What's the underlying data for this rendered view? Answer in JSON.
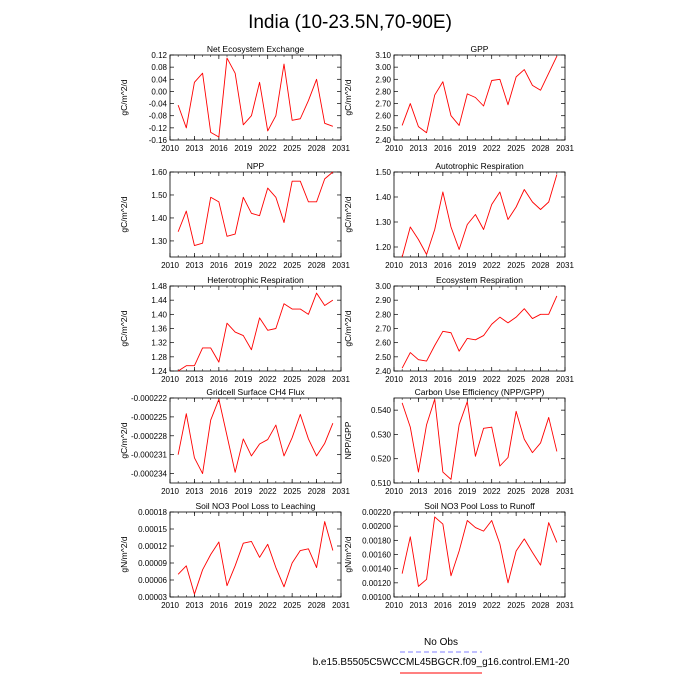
{
  "figure": {
    "title": "India (10-23.5N,70-90E)",
    "legend": {
      "entries": [
        {
          "label": "No Obs",
          "color": "#8080ff",
          "style": "dashed"
        },
        {
          "label": "b.e15.B5505C5WCCML45BGCR.f09_g16.control.EM1-20",
          "color": "#ff0000",
          "style": "solid"
        }
      ]
    }
  },
  "chart_data": [
    {
      "type": "line",
      "title": "Net Ecosystem Exchange",
      "ylabel": "gC/m^2/d",
      "xlabel": "",
      "xlim": [
        2010,
        2031
      ],
      "ylim": [
        -0.16,
        0.12
      ],
      "xticks": [
        2010,
        2013,
        2016,
        2019,
        2022,
        2025,
        2028,
        2031
      ],
      "xtick_labels": [
        "2010",
        "2013",
        "2016",
        "2019",
        "2022",
        "2025",
        "2028",
        "2031"
      ],
      "yticks": [
        -0.16,
        -0.12,
        -0.08,
        -0.04,
        0.0,
        0.04,
        0.08,
        0.12
      ],
      "ytick_labels": [
        "-0.16",
        "-0.12",
        "-0.08",
        "-0.04",
        "0.00",
        "0.04",
        "0.08",
        "0.12"
      ],
      "x": [
        2011,
        2012,
        2013,
        2014,
        2015,
        2016,
        2017,
        2018,
        2019,
        2020,
        2021,
        2022,
        2023,
        2024,
        2025,
        2026,
        2027,
        2028,
        2029,
        2030
      ],
      "series": [
        {
          "color": "#ff0000",
          "values": [
            -0.045,
            -0.12,
            0.03,
            0.06,
            -0.135,
            -0.15,
            0.11,
            0.06,
            -0.11,
            -0.08,
            0.03,
            -0.13,
            -0.08,
            0.09,
            -0.095,
            -0.09,
            -0.03,
            0.04,
            -0.105,
            -0.115
          ]
        }
      ]
    },
    {
      "type": "line",
      "title": "GPP",
      "ylabel": "gC/m^2/d",
      "xlabel": "",
      "xlim": [
        2010,
        2031
      ],
      "ylim": [
        2.4,
        3.1
      ],
      "xticks": [
        2010,
        2013,
        2016,
        2019,
        2022,
        2025,
        2028,
        2031
      ],
      "xtick_labels": [
        "2010",
        "2013",
        "2016",
        "2019",
        "2022",
        "2025",
        "2028",
        "2031"
      ],
      "yticks": [
        2.4,
        2.5,
        2.6,
        2.7,
        2.8,
        2.9,
        3.0,
        3.1
      ],
      "ytick_labels": [
        "2.40",
        "2.50",
        "2.60",
        "2.70",
        "2.80",
        "2.90",
        "3.00",
        "3.10"
      ],
      "x": [
        2011,
        2012,
        2013,
        2014,
        2015,
        2016,
        2017,
        2018,
        2019,
        2020,
        2021,
        2022,
        2023,
        2024,
        2025,
        2026,
        2027,
        2028,
        2029,
        2030
      ],
      "series": [
        {
          "color": "#ff0000",
          "values": [
            2.52,
            2.7,
            2.51,
            2.46,
            2.77,
            2.88,
            2.6,
            2.52,
            2.78,
            2.75,
            2.68,
            2.89,
            2.9,
            2.69,
            2.92,
            2.98,
            2.85,
            2.81,
            2.95,
            3.09
          ]
        }
      ]
    },
    {
      "type": "line",
      "title": "NPP",
      "ylabel": "gC/m^2/d",
      "xlabel": "",
      "xlim": [
        2010,
        2031
      ],
      "ylim": [
        1.23,
        1.6
      ],
      "xticks": [
        2010,
        2013,
        2016,
        2019,
        2022,
        2025,
        2028,
        2031
      ],
      "xtick_labels": [
        "2010",
        "2013",
        "2016",
        "2019",
        "2022",
        "2025",
        "2028",
        "2031"
      ],
      "yticks": [
        1.3,
        1.4,
        1.5,
        1.6
      ],
      "ytick_labels": [
        "1.30",
        "1.40",
        "1.50",
        "1.60"
      ],
      "x": [
        2011,
        2012,
        2013,
        2014,
        2015,
        2016,
        2017,
        2018,
        2019,
        2020,
        2021,
        2022,
        2023,
        2024,
        2025,
        2026,
        2027,
        2028,
        2029,
        2030
      ],
      "series": [
        {
          "color": "#ff0000",
          "values": [
            1.34,
            1.43,
            1.28,
            1.29,
            1.49,
            1.47,
            1.32,
            1.33,
            1.49,
            1.42,
            1.41,
            1.53,
            1.49,
            1.38,
            1.56,
            1.56,
            1.47,
            1.47,
            1.57,
            1.6
          ]
        }
      ]
    },
    {
      "type": "line",
      "title": "Autotrophic Respiration",
      "ylabel": "gC/m^2/d",
      "xlabel": "",
      "xlim": [
        2010,
        2031
      ],
      "ylim": [
        1.16,
        1.5
      ],
      "xticks": [
        2010,
        2013,
        2016,
        2019,
        2022,
        2025,
        2028,
        2031
      ],
      "xtick_labels": [
        "2010",
        "2013",
        "2016",
        "2019",
        "2022",
        "2025",
        "2028",
        "2031"
      ],
      "yticks": [
        1.2,
        1.3,
        1.4,
        1.5
      ],
      "ytick_labels": [
        "1.20",
        "1.30",
        "1.40",
        "1.50"
      ],
      "x": [
        2011,
        2012,
        2013,
        2014,
        2015,
        2016,
        2017,
        2018,
        2019,
        2020,
        2021,
        2022,
        2023,
        2024,
        2025,
        2026,
        2027,
        2028,
        2029,
        2030
      ],
      "series": [
        {
          "color": "#ff0000",
          "values": [
            1.16,
            1.28,
            1.23,
            1.17,
            1.27,
            1.42,
            1.28,
            1.19,
            1.29,
            1.33,
            1.27,
            1.37,
            1.42,
            1.31,
            1.36,
            1.43,
            1.38,
            1.35,
            1.38,
            1.49
          ]
        }
      ]
    },
    {
      "type": "line",
      "title": "Heterotrophic Respiration",
      "ylabel": "gC/m^2/d",
      "xlabel": "",
      "xlim": [
        2010,
        2031
      ],
      "ylim": [
        1.24,
        1.48
      ],
      "xticks": [
        2010,
        2013,
        2016,
        2019,
        2022,
        2025,
        2028,
        2031
      ],
      "xtick_labels": [
        "2010",
        "2013",
        "2016",
        "2019",
        "2022",
        "2025",
        "2028",
        "2031"
      ],
      "yticks": [
        1.24,
        1.28,
        1.32,
        1.36,
        1.4,
        1.44,
        1.48
      ],
      "ytick_labels": [
        "1.24",
        "1.28",
        "1.32",
        "1.36",
        "1.40",
        "1.44",
        "1.48"
      ],
      "x": [
        2011,
        2012,
        2013,
        2014,
        2015,
        2016,
        2017,
        2018,
        2019,
        2020,
        2021,
        2022,
        2023,
        2024,
        2025,
        2026,
        2027,
        2028,
        2029,
        2030
      ],
      "series": [
        {
          "color": "#ff0000",
          "values": [
            1.24,
            1.255,
            1.255,
            1.305,
            1.305,
            1.265,
            1.375,
            1.35,
            1.34,
            1.3,
            1.39,
            1.355,
            1.36,
            1.43,
            1.415,
            1.415,
            1.4,
            1.46,
            1.425,
            1.44
          ]
        }
      ]
    },
    {
      "type": "line",
      "title": "Ecosystem Respiration",
      "ylabel": "gC/m^2/d",
      "xlabel": "",
      "xlim": [
        2010,
        2031
      ],
      "ylim": [
        2.4,
        3.0
      ],
      "xticks": [
        2010,
        2013,
        2016,
        2019,
        2022,
        2025,
        2028,
        2031
      ],
      "xtick_labels": [
        "2010",
        "2013",
        "2016",
        "2019",
        "2022",
        "2025",
        "2028",
        "2031"
      ],
      "yticks": [
        2.4,
        2.5,
        2.6,
        2.7,
        2.8,
        2.9,
        3.0
      ],
      "ytick_labels": [
        "2.40",
        "2.50",
        "2.60",
        "2.70",
        "2.80",
        "2.90",
        "3.00"
      ],
      "x": [
        2011,
        2012,
        2013,
        2014,
        2015,
        2016,
        2017,
        2018,
        2019,
        2020,
        2021,
        2022,
        2023,
        2024,
        2025,
        2026,
        2027,
        2028,
        2029,
        2030
      ],
      "series": [
        {
          "color": "#ff0000",
          "values": [
            2.42,
            2.53,
            2.48,
            2.47,
            2.58,
            2.68,
            2.67,
            2.54,
            2.63,
            2.62,
            2.65,
            2.73,
            2.78,
            2.74,
            2.78,
            2.84,
            2.77,
            2.8,
            2.8,
            2.93
          ]
        }
      ]
    },
    {
      "type": "line",
      "title": "Gridcell Surface CH4 Flux",
      "ylabel": "gC/m^2/d",
      "xlabel": "",
      "xlim": [
        2010,
        2031
      ],
      "ylim": [
        -0.0002355,
        -0.000222
      ],
      "xticks": [
        2010,
        2013,
        2016,
        2019,
        2022,
        2025,
        2028,
        2031
      ],
      "xtick_labels": [
        "2010",
        "2013",
        "2016",
        "2019",
        "2022",
        "2025",
        "2028",
        "2031"
      ],
      "yticks": [
        -0.000222,
        -0.000225,
        -0.000228,
        -0.000231,
        -0.000234
      ],
      "ytick_labels": [
        "-0.000222",
        "-0.000225",
        "-0.000228",
        "-0.000231",
        "-0.000234"
      ],
      "x": [
        2011,
        2012,
        2013,
        2014,
        2015,
        2016,
        2017,
        2018,
        2019,
        2020,
        2021,
        2022,
        2023,
        2024,
        2025,
        2026,
        2027,
        2028,
        2029,
        2030
      ],
      "series": [
        {
          "color": "#ff0000",
          "values": [
            -0.000231,
            -0.0002245,
            -0.0002315,
            -0.000234,
            -0.0002255,
            -0.0002222,
            -0.000228,
            -0.0002338,
            -0.0002285,
            -0.0002312,
            -0.0002293,
            -0.0002286,
            -0.0002263,
            -0.0002312,
            -0.0002283,
            -0.0002246,
            -0.0002285,
            -0.0002312,
            -0.0002292,
            -0.000226
          ]
        }
      ]
    },
    {
      "type": "line",
      "title": "Carbon Use Efficiency (NPP/GPP)",
      "ylabel": "NPP/GPP",
      "xlabel": "",
      "xlim": [
        2010,
        2031
      ],
      "ylim": [
        0.51,
        0.545
      ],
      "xticks": [
        2010,
        2013,
        2016,
        2019,
        2022,
        2025,
        2028,
        2031
      ],
      "xtick_labels": [
        "2010",
        "2013",
        "2016",
        "2019",
        "2022",
        "2025",
        "2028",
        "2031"
      ],
      "yticks": [
        0.51,
        0.52,
        0.53,
        0.54
      ],
      "ytick_labels": [
        "0.510",
        "0.520",
        "0.530",
        "0.540"
      ],
      "x": [
        2011,
        2012,
        2013,
        2014,
        2015,
        2016,
        2017,
        2018,
        2019,
        2020,
        2021,
        2022,
        2023,
        2024,
        2025,
        2026,
        2027,
        2028,
        2029,
        2030
      ],
      "series": [
        {
          "color": "#ff0000",
          "values": [
            0.543,
            0.533,
            0.5145,
            0.534,
            0.5445,
            0.5145,
            0.5115,
            0.534,
            0.5435,
            0.521,
            0.5325,
            0.533,
            0.517,
            0.5205,
            0.5395,
            0.528,
            0.5225,
            0.5265,
            0.537,
            0.523
          ]
        }
      ]
    },
    {
      "type": "line",
      "title": "Soil NO3 Pool Loss to Leaching",
      "ylabel": "gN/m^2/d",
      "xlabel": "",
      "xlim": [
        2010,
        2031
      ],
      "ylim": [
        3e-05,
        0.00018
      ],
      "xticks": [
        2010,
        2013,
        2016,
        2019,
        2022,
        2025,
        2028,
        2031
      ],
      "xtick_labels": [
        "2010",
        "2013",
        "2016",
        "2019",
        "2022",
        "2025",
        "2028",
        "2031"
      ],
      "yticks": [
        3e-05,
        6e-05,
        9e-05,
        0.00012,
        0.00015,
        0.00018
      ],
      "ytick_labels": [
        "0.00003",
        "0.00006",
        "0.00009",
        "0.00012",
        "0.00015",
        "0.00018"
      ],
      "x": [
        2011,
        2012,
        2013,
        2014,
        2015,
        2016,
        2017,
        2018,
        2019,
        2020,
        2021,
        2022,
        2023,
        2024,
        2025,
        2026,
        2027,
        2028,
        2029,
        2030
      ],
      "series": [
        {
          "color": "#ff0000",
          "values": [
            7e-05,
            8.5e-05,
            3.5e-05,
            7.8e-05,
            0.000105,
            0.000127,
            5e-05,
            8.5e-05,
            0.000125,
            0.000128,
            0.0001,
            0.000123,
            8.2e-05,
            4.8e-05,
            9e-05,
            0.000112,
            0.000115,
            8.2e-05,
            0.000163,
            0.000112
          ]
        }
      ]
    },
    {
      "type": "line",
      "title": "Soil NO3 Pool Loss to Runoff",
      "ylabel": "gN/m^2/d",
      "xlabel": "",
      "xlim": [
        2010,
        2031
      ],
      "ylim": [
        0.001,
        0.0022
      ],
      "xticks": [
        2010,
        2013,
        2016,
        2019,
        2022,
        2025,
        2028,
        2031
      ],
      "xtick_labels": [
        "2010",
        "2013",
        "2016",
        "2019",
        "2022",
        "2025",
        "2028",
        "2031"
      ],
      "yticks": [
        0.001,
        0.0012,
        0.0014,
        0.0016,
        0.0018,
        0.002,
        0.0022
      ],
      "ytick_labels": [
        "0.00100",
        "0.00120",
        "0.00140",
        "0.00160",
        "0.00180",
        "0.00200",
        "0.00220"
      ],
      "x": [
        2011,
        2012,
        2013,
        2014,
        2015,
        2016,
        2017,
        2018,
        2019,
        2020,
        2021,
        2022,
        2023,
        2024,
        2025,
        2026,
        2027,
        2028,
        2029,
        2030
      ],
      "series": [
        {
          "color": "#ff0000",
          "values": [
            0.00133,
            0.00185,
            0.00115,
            0.00125,
            0.00213,
            0.00203,
            0.0013,
            0.00165,
            0.00208,
            0.00198,
            0.00193,
            0.00208,
            0.00175,
            0.0012,
            0.00165,
            0.00182,
            0.00163,
            0.00145,
            0.00205,
            0.00177
          ]
        }
      ]
    }
  ]
}
